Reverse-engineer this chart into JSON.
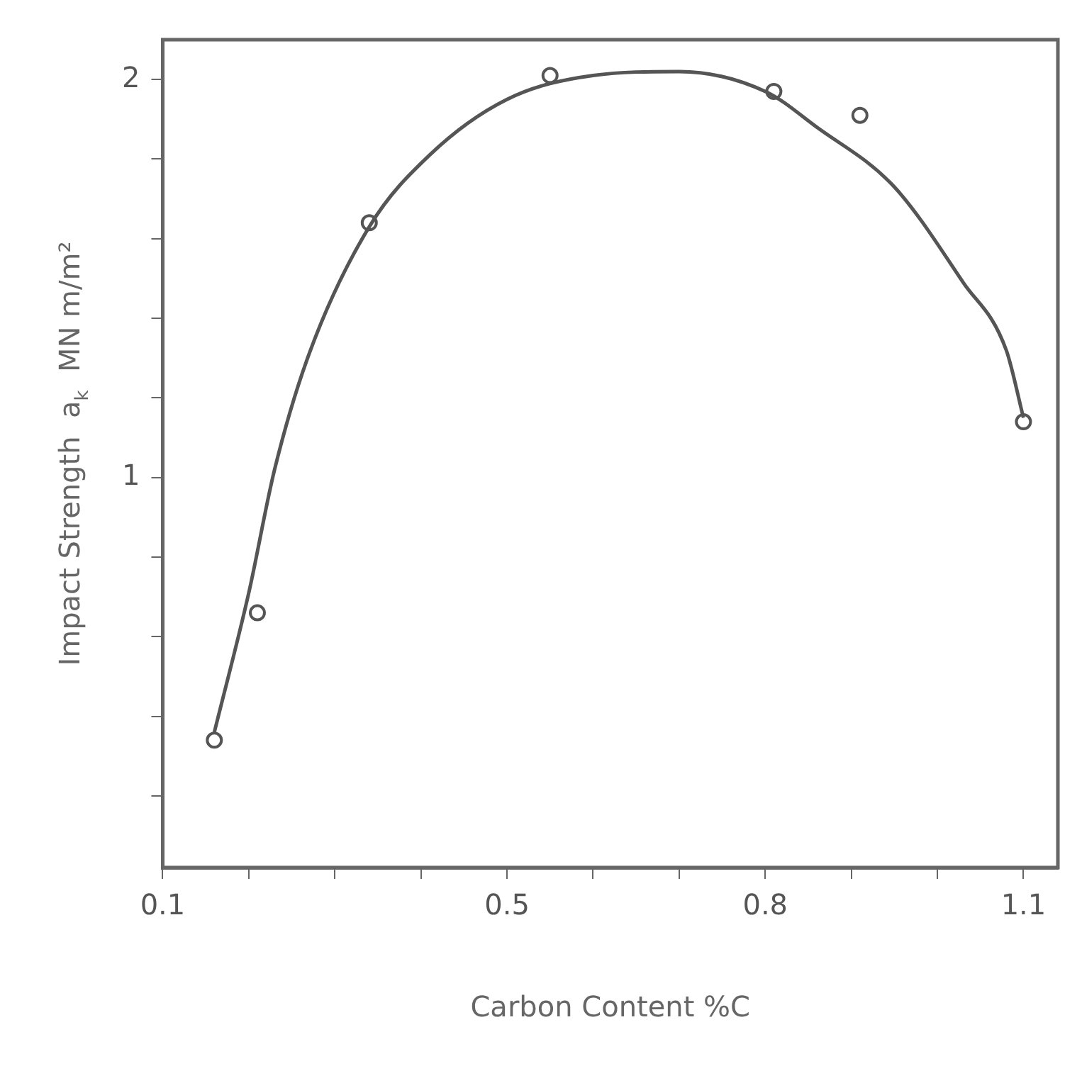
{
  "chart_data": {
    "type": "scatter",
    "xlabel": "Carbon Content %C",
    "ylabel": "Impact Strength  a$_{k}$  MN m/m²",
    "xlim": [
      0.1,
      1.14
    ],
    "xticks": [
      {
        "value": 0.1,
        "label": "0.1"
      },
      {
        "value": 0.2,
        "label": null
      },
      {
        "value": 0.3,
        "label": null
      },
      {
        "value": 0.4,
        "label": null
      },
      {
        "value": 0.5,
        "label": "0.5"
      },
      {
        "value": 0.6,
        "label": null
      },
      {
        "value": 0.7,
        "label": null
      },
      {
        "value": 0.8,
        "label": "0.8"
      },
      {
        "value": 0.9,
        "label": null
      },
      {
        "value": 1.0,
        "label": null
      },
      {
        "value": 1.1,
        "label": "1.1"
      }
    ],
    "ylim": [
      0.02,
      2.1
    ],
    "yticks": [
      {
        "value": 0.2,
        "label": null
      },
      {
        "value": 0.4,
        "label": null
      },
      {
        "value": 0.6,
        "label": null
      },
      {
        "value": 0.8,
        "label": null
      },
      1,
      {
        "value": 1.2,
        "label": null
      },
      {
        "value": 1.4,
        "label": null
      },
      {
        "value": 1.6,
        "label": null
      },
      {
        "value": 1.8,
        "label": null
      },
      2
    ],
    "grid": false,
    "legend": false,
    "marker": "circle",
    "series": [
      {
        "type": "scatter",
        "color": "#555555",
        "x": [
          0.16,
          0.21,
          0.34,
          0.55,
          0.81,
          0.91,
          1.1
        ],
        "values": [
          0.34,
          0.66,
          1.64,
          2.01,
          1.97,
          1.91,
          1.14
        ]
      },
      {
        "type": "line",
        "color": "#555555",
        "line_style": "solid",
        "marker": "none",
        "x": [
          0.16,
          0.2,
          0.23,
          0.27,
          0.34,
          0.41,
          0.5,
          0.6,
          0.7,
          0.8,
          0.86,
          0.95,
          1.03,
          1.08,
          1.1
        ],
        "values": [
          0.36,
          0.71,
          1.02,
          1.31,
          1.63,
          1.81,
          1.95,
          2.01,
          2.02,
          1.97,
          1.88,
          1.73,
          1.49,
          1.32,
          1.15
        ]
      }
    ]
  }
}
